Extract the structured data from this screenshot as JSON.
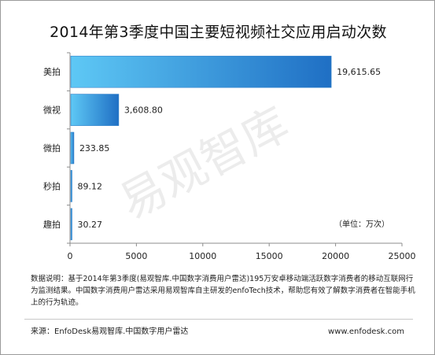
{
  "title": "2014年第3季度中国主要短视频社交应用启动次数",
  "watermark": "易观智库",
  "unit_label": "（单位：万次）",
  "note": "数据说明：基于2014年第3季度(易观智库.中国数字消费用户雷达)195万安卓移动端活跃数字消费者的移动互联网行为监测结果。中国数字消费用户雷达采用易观智库自主研发的enfoTech技术，帮助您有效了解数字消费者在智能手机上的行为轨迹。",
  "source": "来源：EnfoDesk易观智库.中国数字用户雷达",
  "website": "www.enfodesk.com",
  "chart_data": {
    "type": "bar",
    "orientation": "horizontal",
    "title": "2014年第3季度中国主要短视频社交应用启动次数",
    "categories": [
      "美拍",
      "微视",
      "微拍",
      "秒拍",
      "趣拍"
    ],
    "values": [
      19615.65,
      3608.8,
      233.85,
      89.12,
      30.27
    ],
    "value_labels": [
      "19,615.65",
      "3,608.80",
      "233.85",
      "89.12",
      "30.27"
    ],
    "xlim": [
      0,
      25000
    ],
    "x_ticks": [
      0,
      5000,
      10000,
      15000,
      20000,
      25000
    ],
    "bar_color_start": "#5ec8f5",
    "bar_color_end": "#1f6fc4",
    "grid": false
  }
}
